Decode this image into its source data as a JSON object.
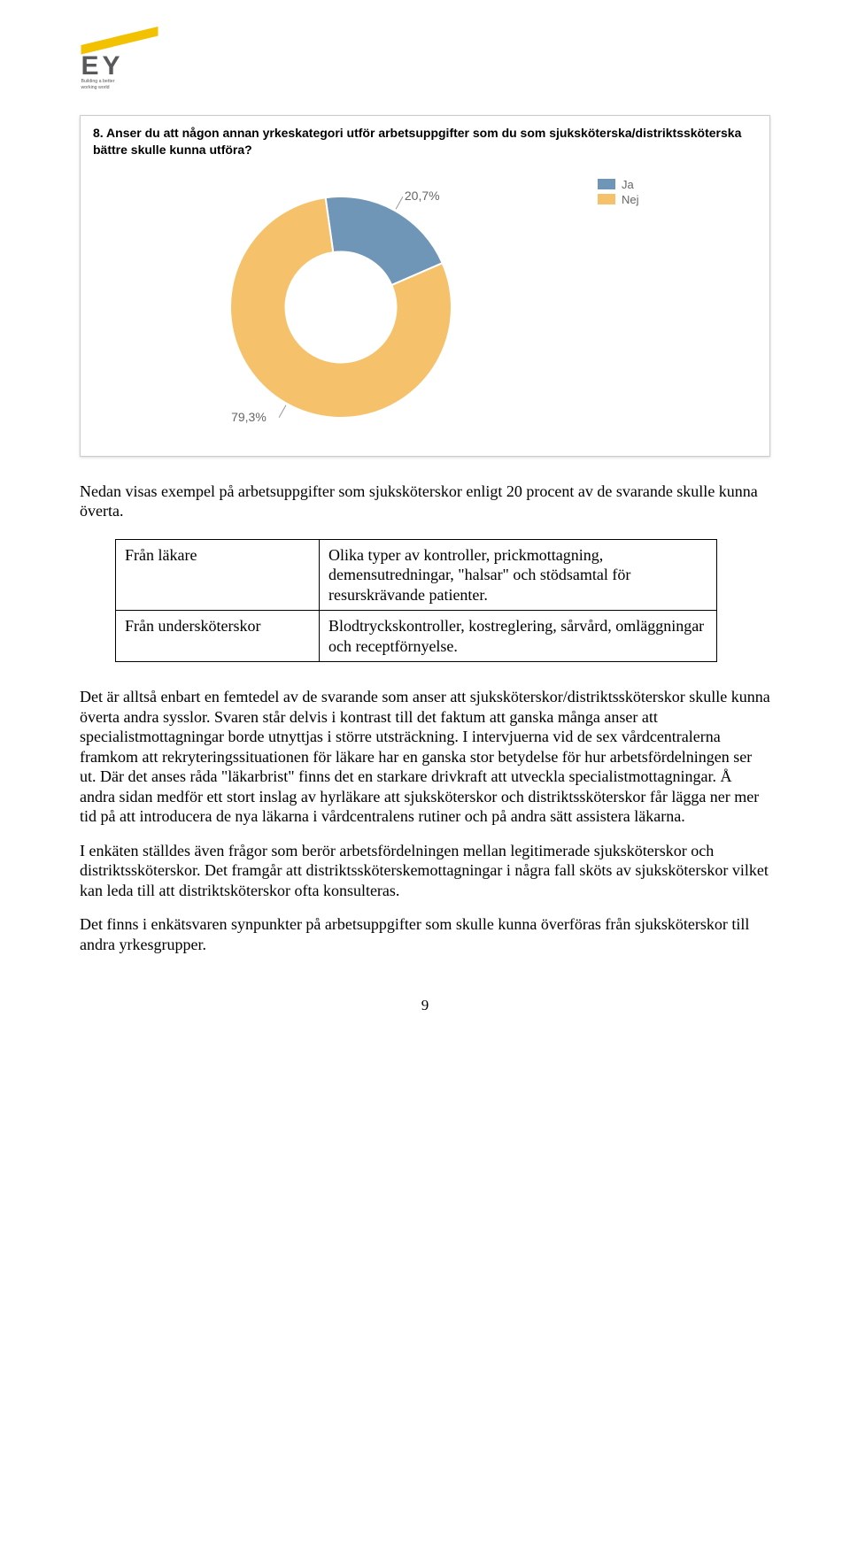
{
  "logo": {
    "tagline": "Building a better working world",
    "beam_color": "#f2c100",
    "text_color": "#58595b"
  },
  "chart": {
    "type": "donut",
    "title": "8. Anser du att någon annan yrkeskategori utför arbetsuppgifter som du som sjuksköterska/distriktssköterska bättre skulle kunna utföra?",
    "slices": [
      {
        "label": "Ja",
        "value": 20.7,
        "display": "20,7%",
        "color": "#6f95b7"
      },
      {
        "label": "Nej",
        "value": 79.3,
        "display": "79,3%",
        "color": "#f5c26b"
      }
    ],
    "inner_radius_ratio": 0.5,
    "outer_radius": 125,
    "background": "#ffffff",
    "label_fontsize": 14,
    "label_color": "#666666",
    "card_border": "#cccccc"
  },
  "intro": "Nedan visas exempel på arbetsuppgifter som sjuksköterskor enligt 20 procent av de svarande skulle kunna överta.",
  "table": {
    "rows": [
      {
        "label": "Från läkare",
        "text": "Olika typer av kontroller, prickmottagning, demensutredningar, \"halsar\" och stödsamtal för resurskrävande patienter."
      },
      {
        "label": "Från undersköterskor",
        "text": "Blodtryckskontroller, kostreglering, sårvård, omläggningar och receptförnyelse."
      }
    ]
  },
  "paragraphs": [
    "Det är alltså enbart en femtedel av de svarande som anser att sjuksköterskor/distriktssköterskor skulle kunna överta andra sysslor. Svaren står delvis i kontrast till det faktum att ganska många anser att specialistmottagningar borde utnyttjas i större utsträckning. I intervjuerna vid de sex vårdcentralerna framkom att rekryteringssituationen för läkare har en ganska stor betydelse för hur arbetsfördelningen ser ut. Där det anses råda \"läkarbrist\" finns det en starkare drivkraft att utveckla specialistmottagningar. Å andra sidan medför ett stort inslag av hyrläkare att sjuksköterskor och distriktssköterskor får lägga ner mer tid på att introducera de nya läkarna i vårdcentralens rutiner och på andra sätt assistera läkarna.",
    "I enkäten ställdes även frågor som berör arbetsfördelningen mellan legitimerade sjuksköterskor och distriktssköterskor. Det framgår att distriktssköterskemottagningar i några fall sköts av sjuksköterskor vilket kan leda till att distriktsköterskor ofta konsulteras.",
    "Det finns i enkätsvaren synpunkter på arbetsuppgifter som skulle kunna överföras från sjuksköterskor till andra yrkesgrupper."
  ],
  "page_number": "9"
}
